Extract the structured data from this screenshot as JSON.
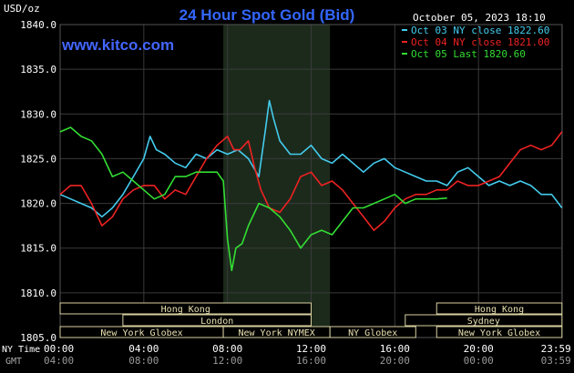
{
  "chart_data": {
    "type": "line",
    "title": "24 Hour Spot Gold (Bid)",
    "source": "www.kitco.com",
    "timestamp": "October 05, 2023 18:10",
    "unit_label": "USD/oz",
    "ylim": [
      1805.0,
      1840.0
    ],
    "yticks": [
      "1840.0",
      "1835.0",
      "1830.0",
      "1825.0",
      "1820.0",
      "1815.0",
      "1810.0",
      "1805.0"
    ],
    "xlim": [
      0,
      24
    ],
    "ny_time_label": "NY Time",
    "gmt_label": "GMT",
    "xticks_ny": [
      "00:00",
      "04:00",
      "08:00",
      "12:00",
      "16:00",
      "20:00",
      "23:59"
    ],
    "xticks_gmt": [
      "04:00",
      "08:00",
      "12:00",
      "16:00",
      "20:00",
      "00:00",
      "03:59"
    ],
    "highlight_hours": [
      7.8,
      12.9
    ],
    "legend": [
      {
        "label": "Oct 03 NY close 1822.60",
        "color": "#44ccee"
      },
      {
        "label": "Oct 04 NY close 1821.00",
        "color": "#ee2222"
      },
      {
        "label": "Oct 05 Last 1820.60",
        "color": "#33dd33"
      }
    ],
    "series": [
      {
        "name": "Oct 03",
        "color": "#44ccee",
        "x": [
          0,
          0.5,
          1.0,
          1.5,
          2.0,
          2.5,
          3.0,
          3.5,
          4.0,
          4.3,
          4.6,
          5.0,
          5.5,
          6.0,
          6.5,
          7.0,
          7.5,
          8.0,
          8.5,
          9.0,
          9.5,
          9.8,
          10.0,
          10.2,
          10.5,
          11.0,
          11.5,
          12.0,
          12.5,
          13.0,
          13.5,
          14.0,
          14.5,
          15.0,
          15.5,
          16.0,
          16.5,
          17.0,
          17.5,
          18.0,
          18.5,
          19.0,
          19.5,
          20.0,
          20.5,
          21.0,
          21.5,
          22.0,
          22.5,
          23.0,
          23.5,
          23.99
        ],
        "y": [
          1821.0,
          1820.5,
          1820.0,
          1819.5,
          1818.5,
          1819.5,
          1821.0,
          1823.0,
          1825.0,
          1827.5,
          1826.0,
          1825.5,
          1824.5,
          1824.0,
          1825.5,
          1825.0,
          1826.0,
          1825.5,
          1826.0,
          1825.0,
          1823.0,
          1828.0,
          1831.5,
          1829.5,
          1827.0,
          1825.5,
          1825.5,
          1826.5,
          1825.0,
          1824.5,
          1825.5,
          1824.5,
          1823.5,
          1824.5,
          1825.0,
          1824.0,
          1823.5,
          1823.0,
          1822.5,
          1822.5,
          1822.0,
          1823.5,
          1824.0,
          1823.0,
          1822.0,
          1822.5,
          1822.0,
          1822.5,
          1822.0,
          1821.0,
          1821.0,
          1819.5
        ]
      },
      {
        "name": "Oct 04",
        "color": "#ee2222",
        "x": [
          0,
          0.5,
          1.0,
          1.5,
          2.0,
          2.5,
          3.0,
          3.5,
          4.0,
          4.5,
          5.0,
          5.5,
          6.0,
          6.5,
          7.0,
          7.5,
          8.0,
          8.3,
          8.6,
          9.0,
          9.3,
          9.6,
          10.0,
          10.5,
          11.0,
          11.5,
          12.0,
          12.5,
          13.0,
          13.5,
          14.0,
          14.5,
          15.0,
          15.5,
          16.0,
          16.5,
          17.0,
          17.5,
          18.0,
          18.5,
          19.0,
          19.5,
          20.0,
          20.5,
          21.0,
          21.5,
          22.0,
          22.5,
          23.0,
          23.5,
          23.99
        ],
        "y": [
          1821.0,
          1822.0,
          1822.0,
          1820.0,
          1817.5,
          1818.5,
          1820.5,
          1821.5,
          1822.0,
          1822.0,
          1820.5,
          1821.5,
          1821.0,
          1823.0,
          1825.0,
          1826.5,
          1827.5,
          1826.0,
          1826.0,
          1827.0,
          1824.0,
          1821.5,
          1819.5,
          1819.0,
          1820.5,
          1823.0,
          1823.5,
          1822.0,
          1822.5,
          1821.5,
          1820.0,
          1818.5,
          1817.0,
          1818.0,
          1819.5,
          1820.5,
          1821.0,
          1821.0,
          1821.5,
          1821.5,
          1822.5,
          1822.0,
          1822.0,
          1822.5,
          1823.0,
          1824.5,
          1826.0,
          1826.5,
          1826.0,
          1826.5,
          1828.0
        ]
      },
      {
        "name": "Oct 05",
        "color": "#33dd33",
        "x": [
          0,
          0.5,
          1.0,
          1.5,
          2.0,
          2.5,
          3.0,
          3.5,
          4.0,
          4.5,
          5.0,
          5.5,
          6.0,
          6.5,
          7.0,
          7.5,
          7.8,
          8.0,
          8.2,
          8.4,
          8.7,
          9.0,
          9.5,
          10.0,
          10.5,
          11.0,
          11.5,
          12.0,
          12.5,
          13.0,
          13.5,
          14.0,
          14.5,
          15.0,
          15.5,
          16.0,
          16.5,
          17.0,
          17.5,
          18.0,
          18.5
        ],
        "y": [
          1828.0,
          1828.5,
          1827.5,
          1827.0,
          1825.5,
          1823.0,
          1823.5,
          1822.5,
          1821.5,
          1820.5,
          1821.0,
          1823.0,
          1823.0,
          1823.5,
          1823.5,
          1823.5,
          1822.5,
          1816.0,
          1812.5,
          1815.0,
          1815.5,
          1817.5,
          1820.0,
          1819.5,
          1818.5,
          1817.0,
          1815.0,
          1816.5,
          1817.0,
          1816.5,
          1818.0,
          1819.5,
          1819.5,
          1820.0,
          1820.5,
          1821.0,
          1820.0,
          1820.5,
          1820.5,
          1820.5,
          1820.6
        ]
      }
    ],
    "sessions": [
      {
        "label": "Hong Kong",
        "start": 0.0,
        "end": 12.0
      },
      {
        "label": "London",
        "start": 3.0,
        "end": 12.0
      },
      {
        "label": "New York Globex",
        "start": 0.0,
        "end": 7.8
      },
      {
        "label": "New York NYMEX",
        "start": 7.8,
        "end": 12.9
      },
      {
        "label": "NY Globex",
        "start": 12.9,
        "end": 17.0
      },
      {
        "label": "Hong Kong",
        "start": 18.0,
        "end": 23.99
      },
      {
        "label": "Sydney",
        "start": 16.5,
        "end": 23.99
      },
      {
        "label": "New York Globex",
        "start": 18.0,
        "end": 23.99
      }
    ]
  }
}
